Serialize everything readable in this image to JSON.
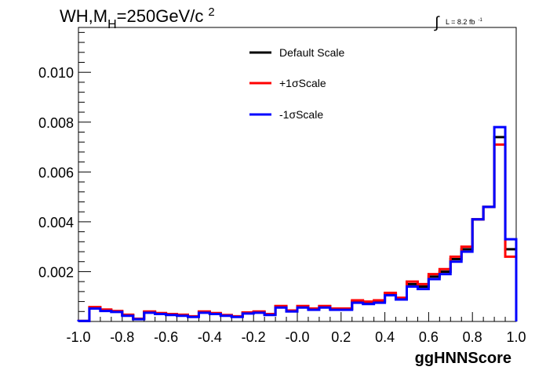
{
  "chart_data": {
    "type": "line",
    "title_parts": {
      "main": "WH,M",
      "sub": "H",
      "rest": "=250GeV/c",
      "sup": "2"
    },
    "lumi": {
      "integral": "∫",
      "text": "L = 8.2 fb",
      "sup": "-1"
    },
    "xlabel": "ggHNNScore",
    "ylabel": "",
    "xlim": [
      -1.0,
      1.0
    ],
    "ylim": [
      0.0,
      0.0118
    ],
    "x_ticks": [
      "-1.0",
      "-0.8",
      "-0.6",
      "-0.4",
      "-0.2",
      "-0.0",
      "0.2",
      "0.4",
      "0.6",
      "0.8",
      "1.0"
    ],
    "y_ticks": [
      {
        "value": 0.002,
        "label": "0.002"
      },
      {
        "value": 0.004,
        "label": "0.004"
      },
      {
        "value": 0.006,
        "label": "0.006"
      },
      {
        "value": 0.008,
        "label": "0.008"
      },
      {
        "value": 0.01,
        "label": "0.010"
      }
    ],
    "bin_edges": [
      -1.0,
      -0.95,
      -0.9,
      -0.85,
      -0.8,
      -0.75,
      -0.7,
      -0.65,
      -0.6,
      -0.55,
      -0.5,
      -0.45,
      -0.4,
      -0.35,
      -0.3,
      -0.25,
      -0.2,
      -0.15,
      -0.1,
      -0.05,
      0.0,
      0.05,
      0.1,
      0.15,
      0.2,
      0.25,
      0.3,
      0.35,
      0.4,
      0.45,
      0.5,
      0.55,
      0.6,
      0.65,
      0.7,
      0.75,
      0.8,
      0.85,
      0.9,
      0.95,
      1.0
    ],
    "legend_position": "top-center",
    "series": [
      {
        "name": "Default Scale",
        "color": "#000000",
        "values": [
          2e-05,
          0.00055,
          0.00045,
          0.0004,
          0.00025,
          0.0001,
          0.00038,
          0.00032,
          0.00028,
          0.00025,
          0.0002,
          0.00038,
          0.00032,
          0.00025,
          0.0002,
          0.00035,
          0.00038,
          0.00028,
          0.0006,
          0.00042,
          0.0006,
          0.0005,
          0.0006,
          0.0005,
          0.0005,
          0.0008,
          0.00075,
          0.0008,
          0.0011,
          0.0009,
          0.0015,
          0.0014,
          0.0018,
          0.002,
          0.0025,
          0.0029,
          0.0041,
          0.0046,
          0.0074,
          0.0029
        ]
      },
      {
        "name": "+1σScale",
        "color": "#ff0000",
        "values": [
          2e-05,
          0.00058,
          0.00048,
          0.00042,
          0.00027,
          0.00011,
          0.0004,
          0.00034,
          0.0003,
          0.00027,
          0.00021,
          0.0004,
          0.00034,
          0.00026,
          0.00021,
          0.00036,
          0.0004,
          0.0003,
          0.00062,
          0.00044,
          0.00062,
          0.00052,
          0.00062,
          0.00052,
          0.00052,
          0.00085,
          0.0008,
          0.00085,
          0.00115,
          0.00095,
          0.0016,
          0.0015,
          0.0019,
          0.0021,
          0.0026,
          0.003,
          0.0041,
          0.0046,
          0.0071,
          0.0026
        ]
      },
      {
        "name": "-1σScale",
        "color": "#0000ff",
        "values": [
          2e-05,
          0.00052,
          0.00042,
          0.00038,
          0.00023,
          9e-05,
          0.00035,
          0.0003,
          0.00026,
          0.00023,
          0.00018,
          0.00035,
          0.0003,
          0.00023,
          0.00018,
          0.00032,
          0.00035,
          0.00026,
          0.00056,
          0.0004,
          0.00056,
          0.00047,
          0.00056,
          0.00047,
          0.00047,
          0.00075,
          0.0007,
          0.00075,
          0.00105,
          0.00088,
          0.0014,
          0.0013,
          0.0017,
          0.0019,
          0.0024,
          0.0028,
          0.0041,
          0.0046,
          0.0078,
          0.0033
        ]
      }
    ]
  }
}
